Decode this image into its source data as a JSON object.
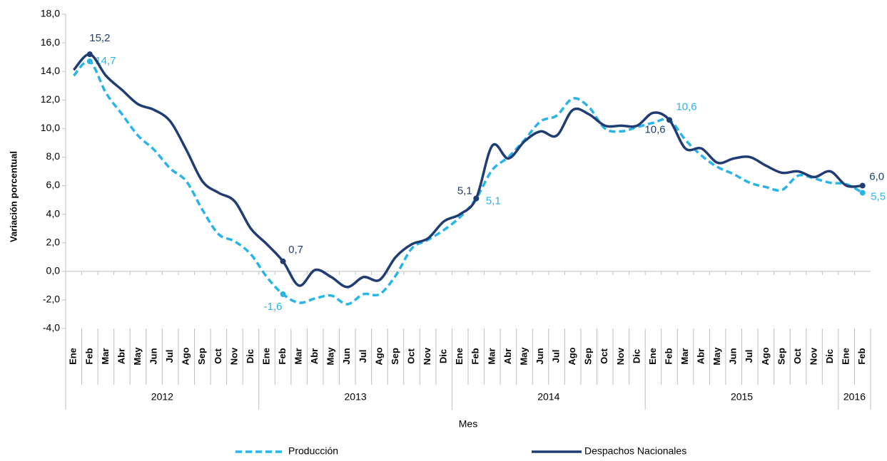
{
  "chart_data": {
    "type": "line",
    "y_axis_label": "Variación porcentual",
    "x_axis_label": "Mes",
    "year_groups": [
      {
        "label": "2012",
        "categories": [
          "Ene",
          "Feb",
          "Mar",
          "Abr",
          "May",
          "Jun",
          "Jul",
          "Ago",
          "Sep",
          "Oct",
          "Nov",
          "Dic"
        ]
      },
      {
        "label": "2013",
        "categories": [
          "Ene",
          "Feb",
          "Mar",
          "Abr",
          "May",
          "Jun",
          "Jul",
          "Ago",
          "Sep",
          "Oct",
          "Nov",
          "Dic"
        ]
      },
      {
        "label": "2014",
        "categories": [
          "Ene",
          "Feb",
          "Mar",
          "Abr",
          "May",
          "Jun",
          "Jul",
          "Ago",
          "Sep",
          "Oct",
          "Nov",
          "Dic"
        ]
      },
      {
        "label": "2015",
        "categories": [
          "Ene",
          "Feb",
          "Mar",
          "Abr",
          "May",
          "Jun",
          "Jul",
          "Ago",
          "Sep",
          "Oct",
          "Nov",
          "Dic"
        ]
      },
      {
        "label": "2016",
        "categories": [
          "Ene",
          "Feb"
        ]
      }
    ],
    "series": [
      {
        "name": "Producción",
        "color": "#29b4e8",
        "dashed": true,
        "values": [
          13.7,
          14.7,
          12.5,
          11.0,
          9.5,
          8.5,
          7.2,
          6.3,
          4.3,
          2.6,
          2.1,
          1.2,
          -0.4,
          -1.6,
          -2.2,
          -1.9,
          -1.7,
          -2.3,
          -1.6,
          -1.6,
          -0.3,
          1.6,
          2.2,
          2.9,
          3.8,
          5.1,
          7.1,
          8.0,
          9.2,
          10.5,
          10.9,
          12.1,
          11.5,
          10.0,
          9.8,
          10.1,
          10.4,
          10.6,
          9.2,
          8.1,
          7.3,
          6.8,
          6.2,
          5.9,
          5.7,
          6.7,
          6.5,
          6.2,
          6.1,
          5.5
        ],
        "value_labels": [
          null,
          "14,7",
          null,
          null,
          null,
          null,
          null,
          null,
          null,
          null,
          null,
          null,
          null,
          "-1,6",
          null,
          null,
          null,
          null,
          null,
          null,
          null,
          null,
          null,
          null,
          null,
          "5,1",
          null,
          null,
          null,
          null,
          null,
          null,
          null,
          null,
          null,
          null,
          null,
          "10,6",
          null,
          null,
          null,
          null,
          null,
          null,
          null,
          null,
          null,
          null,
          null,
          "5,5"
        ]
      },
      {
        "name": "Despachos Nacionales",
        "color": "#1f3d73",
        "dashed": false,
        "values": [
          14.1,
          15.2,
          13.7,
          12.7,
          11.7,
          11.3,
          10.5,
          8.5,
          6.3,
          5.5,
          4.9,
          3.0,
          1.9,
          0.7,
          -1.0,
          0.1,
          -0.4,
          -1.1,
          -0.4,
          -0.6,
          1.0,
          1.9,
          2.3,
          3.5,
          4.0,
          5.1,
          8.8,
          7.9,
          9.1,
          9.8,
          9.5,
          11.3,
          11.0,
          10.2,
          10.2,
          10.2,
          11.1,
          10.6,
          8.6,
          8.6,
          7.6,
          7.9,
          8.0,
          7.4,
          6.9,
          7.0,
          6.6,
          7.0,
          6.0,
          6.0
        ],
        "value_labels": [
          null,
          "15,2",
          null,
          null,
          null,
          null,
          null,
          null,
          null,
          null,
          null,
          null,
          null,
          "0,7",
          null,
          null,
          null,
          null,
          null,
          null,
          null,
          null,
          null,
          null,
          null,
          "5,1",
          null,
          null,
          null,
          null,
          null,
          null,
          null,
          null,
          null,
          null,
          null,
          "10,6",
          null,
          null,
          null,
          null,
          null,
          null,
          null,
          null,
          null,
          null,
          null,
          "6,0"
        ]
      }
    ],
    "ylim": [
      -4,
      18
    ],
    "yticks": [
      {
        "value": -4,
        "label": "-4,0"
      },
      {
        "value": -2,
        "label": "-2,0"
      },
      {
        "value": 0,
        "label": "0,0"
      },
      {
        "value": 2,
        "label": "2,0"
      },
      {
        "value": 4,
        "label": "4,0"
      },
      {
        "value": 6,
        "label": "6,0"
      },
      {
        "value": 8,
        "label": "8,0"
      },
      {
        "value": 10,
        "label": "10,0"
      },
      {
        "value": 12,
        "label": "12,0"
      },
      {
        "value": 14,
        "label": "14,0"
      },
      {
        "value": 16,
        "label": "16,0"
      },
      {
        "value": 18,
        "label": "18,0"
      }
    ],
    "grid": false,
    "legend": "bottom"
  }
}
